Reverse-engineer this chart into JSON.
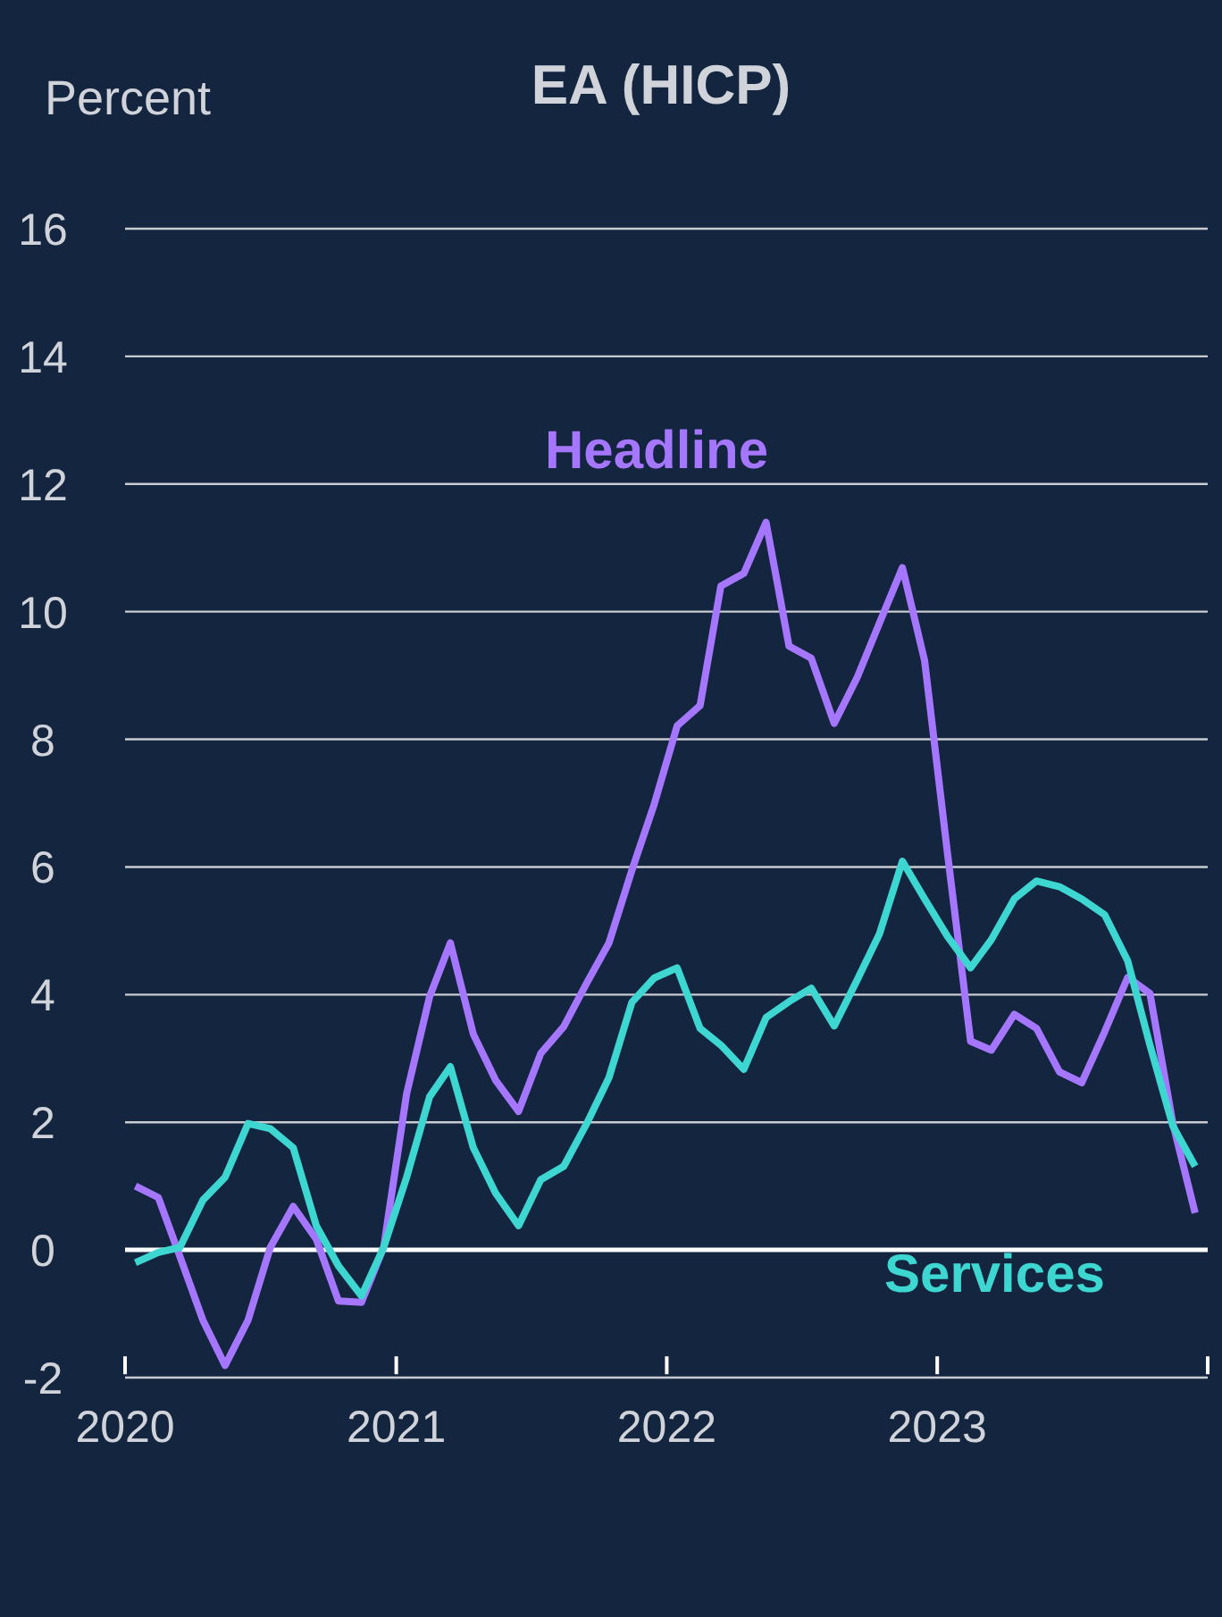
{
  "chart_data": {
    "type": "line",
    "title": "EA (HICP)",
    "ylabel": "Percent",
    "x": [
      "2020-01-15",
      "2020-02-15",
      "2020-03-15",
      "2020-04-15",
      "2020-05-15",
      "2020-06-15",
      "2020-07-15",
      "2020-08-15",
      "2020-09-15",
      "2020-10-15",
      "2020-11-15",
      "2020-12-15",
      "2021-01-15",
      "2021-02-15",
      "2021-03-15",
      "2021-04-15",
      "2021-05-15",
      "2021-06-15",
      "2021-07-15",
      "2021-08-15",
      "2021-09-15",
      "2021-10-15",
      "2021-11-15",
      "2021-12-15",
      "2022-01-15",
      "2022-02-15",
      "2022-03-15",
      "2022-04-15",
      "2022-05-15",
      "2022-06-15",
      "2022-07-15",
      "2022-08-15",
      "2022-09-15",
      "2022-10-15",
      "2022-11-15",
      "2022-12-15",
      "2023-01-15",
      "2023-02-15",
      "2023-03-15",
      "2023-04-15",
      "2023-05-15",
      "2023-06-15",
      "2023-07-15",
      "2023-08-15",
      "2023-09-15",
      "2023-10-15",
      "2023-11-15",
      "2023-12-15"
    ],
    "series": [
      {
        "name": "Headline",
        "color": "#a577ff",
        "values": [
          1.0,
          0.82,
          -0.1,
          -1.1,
          -1.81,
          -1.1,
          0.04,
          0.68,
          0.17,
          -0.8,
          -0.82,
          0.04,
          2.45,
          3.97,
          4.81,
          3.38,
          2.66,
          2.17,
          3.08,
          3.5,
          4.18,
          4.81,
          5.95,
          6.98,
          8.21,
          8.53,
          10.4,
          10.6,
          11.4,
          9.46,
          9.27,
          8.25,
          8.97,
          9.82,
          10.69,
          9.23,
          6.2,
          3.27,
          3.13,
          3.69,
          3.47,
          2.79,
          2.62,
          3.42,
          4.27,
          4.02,
          1.98,
          0.58
        ]
      },
      {
        "name": "Services",
        "color": "#3dd6d0",
        "values": [
          -0.2,
          -0.04,
          0.04,
          0.78,
          1.14,
          1.98,
          1.9,
          1.6,
          0.38,
          -0.25,
          -0.72,
          0.04,
          1.14,
          2.4,
          2.87,
          1.6,
          0.89,
          0.38,
          1.1,
          1.31,
          1.98,
          2.7,
          3.88,
          4.26,
          4.42,
          3.47,
          3.21,
          2.83,
          3.64,
          3.89,
          4.1,
          3.51,
          4.23,
          4.95,
          6.09,
          5.5,
          4.91,
          4.42,
          4.86,
          5.5,
          5.78,
          5.69,
          5.5,
          5.25,
          4.53,
          3.21,
          1.94,
          1.31
        ]
      }
    ],
    "xlim": [
      "2020",
      "2024"
    ],
    "xticks": [
      "2020",
      "2021",
      "2022",
      "2023",
      {
        "value": "2024",
        "label": null
      }
    ],
    "ylim": [
      -2,
      16
    ],
    "yticks": [
      -2,
      0,
      2,
      4,
      6,
      8,
      10,
      12,
      14,
      16
    ],
    "grid": "y",
    "marker": "none",
    "line_style": "solid"
  }
}
